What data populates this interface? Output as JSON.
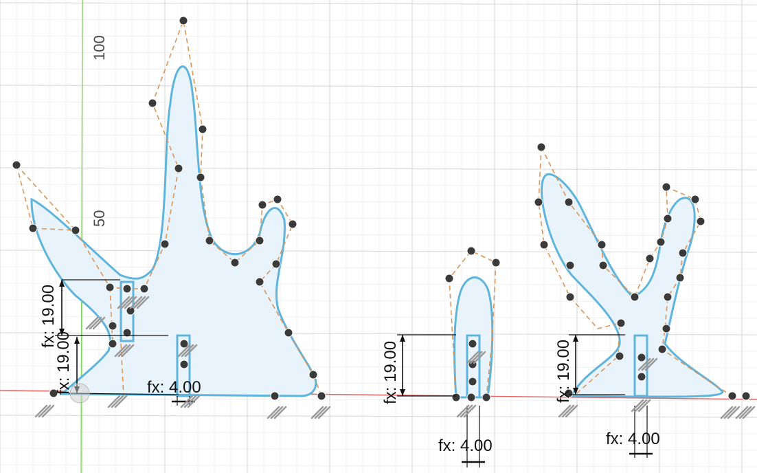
{
  "viewport": {
    "axis_labels": [
      "100",
      "50"
    ]
  },
  "colors": {
    "background": "#ffffff",
    "grid_minor": "#ececec",
    "grid_major": "#dcdcdc",
    "x_axis": "#e06666",
    "y_axis": "#7ed957",
    "profile_stroke": "#5fb4dc",
    "profile_fill": "#e8f3fb",
    "construction_line": "#d9965a",
    "control_point": "#3a3a3a",
    "dimension": "#111111",
    "constraint_glyph": "#9a9a9a"
  },
  "dimensions": [
    {
      "id": "d1",
      "text": "fx: 19.00"
    },
    {
      "id": "d2",
      "text": "fx: 19.00"
    },
    {
      "id": "d3",
      "text": "fx: 4.00"
    },
    {
      "id": "d4",
      "text": "fx: 19.00"
    },
    {
      "id": "d5",
      "text": "fx: 4.00"
    },
    {
      "id": "d6",
      "text": "fx: 19.00"
    },
    {
      "id": "d7",
      "text": "fx: 4.00"
    }
  ],
  "profiles": [
    {
      "id": "hand-left",
      "name": "sketch-profile-left"
    },
    {
      "id": "finger-middle",
      "name": "sketch-profile-middle"
    },
    {
      "id": "hand-right",
      "name": "sketch-profile-right"
    }
  ],
  "icons": {
    "constraint": "parallel-constraint-icon",
    "point": "sketch-point-icon"
  }
}
